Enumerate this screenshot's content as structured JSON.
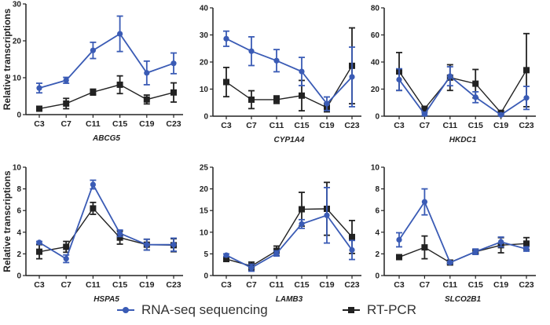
{
  "chart_data": {
    "type": "line",
    "layout": "2x3 panels",
    "ylabel": "Relative transcriptions",
    "categories": [
      "C3",
      "C7",
      "C11",
      "C15",
      "C19",
      "C23"
    ],
    "legend": {
      "position": "bottom",
      "entries": [
        {
          "name": "RNA-seq sequencing",
          "color": "#3a5bb5",
          "marker": "circle"
        },
        {
          "name": "RT-PCR",
          "color": "#222222",
          "marker": "square"
        }
      ]
    },
    "panels": [
      {
        "gene": "ABCG5",
        "ylim": [
          0,
          30
        ],
        "yticks": [
          0,
          10,
          20,
          30
        ],
        "series": [
          {
            "name": "RNA-seq sequencing",
            "values": [
              7.2,
              9.3,
              17.4,
              21.9,
              11.3,
              13.9
            ],
            "err": [
              1.3,
              0.8,
              2.2,
              4.8,
              3.2,
              2.8
            ]
          },
          {
            "name": "RT-PCR",
            "values": [
              1.6,
              3.0,
              6.1,
              8.1,
              4.1,
              6.0
            ],
            "err": [
              0.3,
              1.4,
              0.8,
              2.4,
              1.2,
              2.6
            ]
          }
        ]
      },
      {
        "gene": "CYP1A4",
        "ylim": [
          0,
          40
        ],
        "yticks": [
          0,
          10,
          20,
          30,
          40
        ],
        "series": [
          {
            "name": "RNA-seq sequencing",
            "values": [
              28.6,
              24.0,
              20.5,
              16.5,
              4.6,
              14.5
            ],
            "err": [
              2.8,
              5.3,
              4.1,
              5.2,
              2.5,
              11.0
            ]
          },
          {
            "name": "RT-PCR",
            "values": [
              12.6,
              6.1,
              6.1,
              7.6,
              3.2,
              18.6
            ],
            "err": [
              5.4,
              3.3,
              1.4,
              5.6,
              1.6,
              14.0
            ]
          }
        ]
      },
      {
        "gene": "HKDC1",
        "ylim": [
          0,
          80
        ],
        "yticks": [
          0,
          20,
          40,
          60,
          80
        ],
        "series": [
          {
            "name": "RNA-seq sequencing",
            "values": [
              27.0,
              1.5,
              29.5,
              14.0,
              1.0,
              13.5
            ],
            "err": [
              8.0,
              1.0,
              7.0,
              4.0,
              0.5,
              8.5
            ]
          },
          {
            "name": "RT-PCR",
            "values": [
              33.0,
              5.5,
              28.5,
              24.0,
              2.5,
              34.0
            ],
            "err": [
              14.0,
              1.5,
              9.5,
              10.5,
              1.0,
              27.0
            ]
          }
        ]
      },
      {
        "gene": "HSPA5",
        "ylim": [
          0,
          10
        ],
        "yticks": [
          0,
          2,
          4,
          6,
          8,
          10
        ],
        "series": [
          {
            "name": "RNA-seq sequencing",
            "values": [
              3.05,
              1.55,
              8.4,
              3.9,
              2.85,
              2.85
            ],
            "err": [
              0.1,
              0.35,
              0.4,
              0.3,
              0.5,
              0.6
            ]
          },
          {
            "name": "RT-PCR",
            "values": [
              2.2,
              2.65,
              6.2,
              3.5,
              2.85,
              2.8
            ],
            "err": [
              0.65,
              0.5,
              0.55,
              0.6,
              0.5,
              0.6
            ]
          }
        ]
      },
      {
        "gene": "LAMB3",
        "ylim": [
          0,
          25
        ],
        "yticks": [
          0,
          5,
          10,
          15,
          20,
          25
        ],
        "series": [
          {
            "name": "RNA-seq sequencing",
            "values": [
              4.7,
              1.8,
              5.1,
              11.9,
              13.9,
              5.9
            ],
            "err": [
              0.3,
              0.8,
              0.6,
              1.0,
              6.4,
              2.2
            ]
          },
          {
            "name": "RT-PCR",
            "values": [
              3.8,
              2.2,
              5.7,
              15.3,
              15.4,
              8.9
            ],
            "err": [
              0.3,
              0.9,
              1.1,
              3.9,
              6.1,
              3.8
            ]
          }
        ]
      },
      {
        "gene": "SLCO2B1",
        "ylim": [
          0,
          10
        ],
        "yticks": [
          0,
          2,
          4,
          6,
          8,
          10
        ],
        "series": [
          {
            "name": "RNA-seq sequencing",
            "values": [
              3.3,
              6.8,
              1.2,
              2.2,
              3.1,
              2.45
            ],
            "err": [
              0.65,
              1.2,
              0.1,
              0.25,
              0.45,
              0.2
            ]
          },
          {
            "name": "RT-PCR",
            "values": [
              1.7,
              2.6,
              1.2,
              2.2,
              2.8,
              2.95
            ],
            "err": [
              0.15,
              1.05,
              0.1,
              0.15,
              0.7,
              0.55
            ]
          }
        ]
      }
    ]
  }
}
